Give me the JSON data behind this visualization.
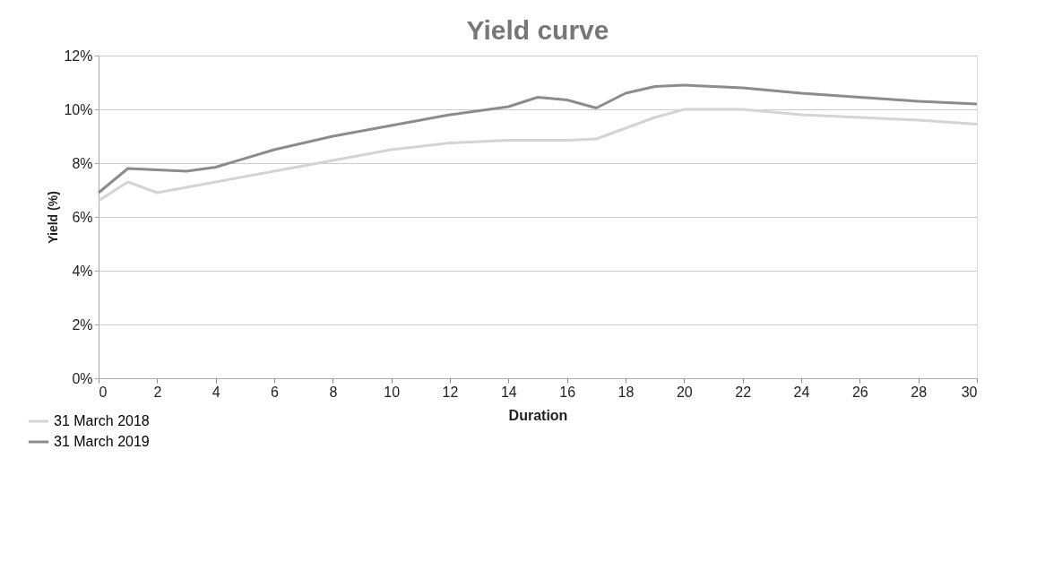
{
  "chart_data": {
    "type": "line",
    "title": "Yield curve",
    "xlabel": "Duration",
    "ylabel": "Yield (%)",
    "x": [
      0,
      1,
      2,
      3,
      4,
      6,
      8,
      10,
      12,
      14,
      15,
      16,
      17,
      18,
      19,
      20,
      22,
      24,
      26,
      28,
      30
    ],
    "series": [
      {
        "name": "31 March 2018",
        "color": "#d4d4d4",
        "values": [
          6.6,
          7.3,
          6.9,
          7.1,
          7.3,
          7.7,
          8.1,
          8.5,
          8.75,
          8.85,
          8.85,
          8.85,
          8.9,
          9.3,
          9.7,
          10.0,
          10.0,
          9.8,
          9.7,
          9.6,
          9.45
        ]
      },
      {
        "name": "31 March 2019",
        "color": "#8c8c8c",
        "values": [
          6.9,
          7.8,
          7.75,
          7.7,
          7.85,
          8.5,
          9.0,
          9.4,
          9.8,
          10.1,
          10.45,
          10.35,
          10.05,
          10.6,
          10.85,
          10.9,
          10.8,
          10.6,
          10.45,
          10.3,
          10.2
        ]
      }
    ],
    "xlim": [
      0,
      30
    ],
    "xticks": [
      0,
      2,
      4,
      6,
      8,
      10,
      12,
      14,
      16,
      18,
      20,
      22,
      24,
      26,
      28,
      30
    ],
    "ylim": [
      0,
      12
    ],
    "yticks": [
      {
        "value": 0,
        "label": "0%"
      },
      {
        "value": 2,
        "label": "2%"
      },
      {
        "value": 4,
        "label": "4%"
      },
      {
        "value": 6,
        "label": "6%"
      },
      {
        "value": 8,
        "label": "8%"
      },
      {
        "value": 10,
        "label": "10%"
      },
      {
        "value": 12,
        "label": "12%"
      }
    ],
    "grid": "y",
    "legend": "bottom left",
    "marker": "none",
    "line_style": "solid"
  }
}
